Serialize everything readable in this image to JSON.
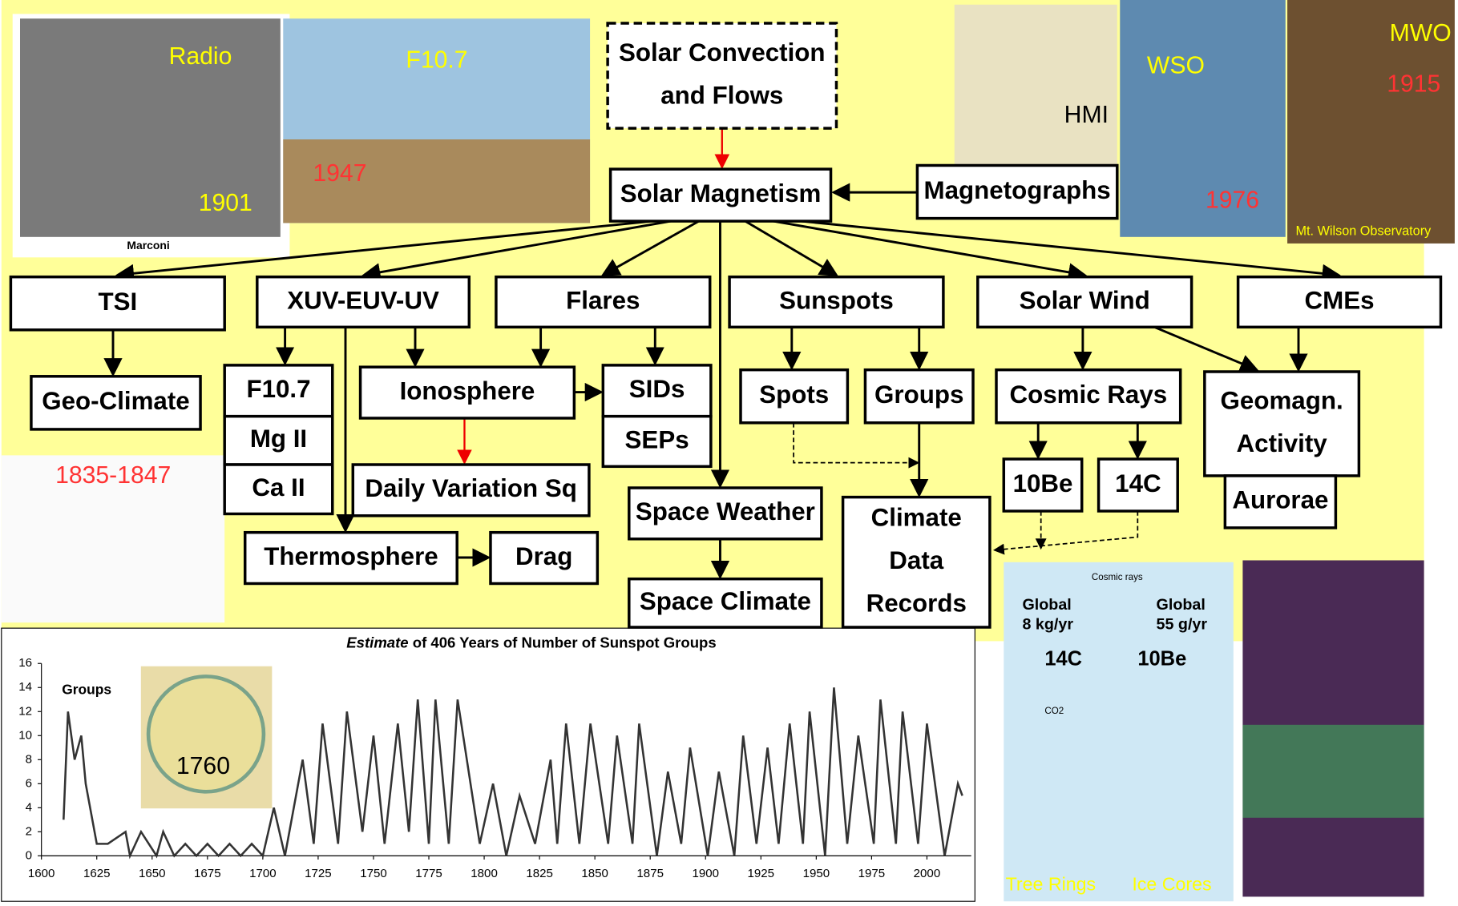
{
  "nodes": [
    {
      "lines": [
        "Solar Convection",
        "and Flows"
      ]
    },
    {
      "lines": [
        "Solar Magnetism"
      ]
    },
    {
      "lines": [
        "Magnetographs"
      ]
    },
    {
      "lines": [
        "TSI"
      ]
    },
    {
      "lines": [
        "XUV-EUV-UV"
      ]
    },
    {
      "lines": [
        "Flares"
      ]
    },
    {
      "lines": [
        "Sunspots"
      ]
    },
    {
      "lines": [
        "Solar Wind"
      ]
    },
    {
      "lines": [
        "CMEs"
      ]
    },
    {
      "lines": [
        "Geo-Climate"
      ]
    },
    {
      "lines": [
        "F10.7"
      ]
    },
    {
      "lines": [
        "Mg II"
      ]
    },
    {
      "lines": [
        "Ca II"
      ]
    },
    {
      "lines": [
        "Ionosphere"
      ]
    },
    {
      "lines": [
        "SIDs"
      ]
    },
    {
      "lines": [
        "SEPs"
      ]
    },
    {
      "lines": [
        "Spots"
      ]
    },
    {
      "lines": [
        "Groups"
      ]
    },
    {
      "lines": [
        "Cosmic Rays"
      ]
    },
    {
      "lines": [
        "Geomagn.",
        "Activity"
      ]
    },
    {
      "lines": [
        "Aurorae"
      ]
    },
    {
      "lines": [
        "Daily Variation Sq"
      ]
    },
    {
      "lines": [
        "Thermosphere"
      ]
    },
    {
      "lines": [
        "Drag"
      ]
    },
    {
      "lines": [
        "Space Weather"
      ]
    },
    {
      "lines": [
        "Space Climate"
      ]
    },
    {
      "lines": [
        "Climate",
        "Data",
        "Records"
      ]
    },
    {
      "lines": [
        "10Be"
      ]
    },
    {
      "lines": [
        "14C"
      ]
    }
  ],
  "photos": {
    "radio": "Radio",
    "radio_year": "1901",
    "marconi": "Marconi",
    "f107": "F10.7",
    "f107_year": "1947",
    "hmi": "HMI",
    "wso": "WSO",
    "wso_year": "1976",
    "mwo": "MWO",
    "mwo_year": "1915",
    "mwo_name": "Mt. Wilson Observatory",
    "magnetometer_years": "1835-1847",
    "cosmic_rays": "Cosmic rays",
    "global_c": "Global",
    "flux_c": "8 kg/yr",
    "global_be": "Global",
    "flux_be": "55 g/yr",
    "c14": "14C",
    "be10": "10Be",
    "co2": "CO2",
    "tree_rings": "Tree Rings",
    "ice_cores": "Ice Cores"
  },
  "chart_data": {
    "type": "line",
    "title_emphasis": "Estimate",
    "title": " of 406 Years of Number of Sunspot Groups",
    "ylabel": "Groups",
    "inset_label": "1760",
    "color": "#333333",
    "x": [
      1610,
      1612,
      1615,
      1618,
      1620,
      1625,
      1630,
      1638,
      1640,
      1645,
      1652,
      1655,
      1660,
      1665,
      1670,
      1675,
      1680,
      1685,
      1690,
      1695,
      1700,
      1705,
      1710,
      1718,
      1723,
      1727,
      1734,
      1738,
      1745,
      1750,
      1755,
      1761,
      1766,
      1770,
      1775,
      1778,
      1784,
      1788,
      1798,
      1804,
      1810,
      1816,
      1823,
      1830,
      1833,
      1837,
      1843,
      1848,
      1856,
      1860,
      1867,
      1870,
      1878,
      1883,
      1889,
      1893,
      1901,
      1906,
      1913,
      1917,
      1923,
      1928,
      1933,
      1938,
      1944,
      1947,
      1954,
      1958,
      1964,
      1969,
      1976,
      1979,
      1986,
      1989,
      1996,
      2000,
      2008,
      2014,
      2016
    ],
    "values": [
      3,
      12,
      8,
      10,
      6,
      1,
      1,
      2,
      0,
      2,
      0,
      2,
      0,
      1,
      0,
      1,
      0,
      1,
      0,
      1,
      0,
      4,
      0,
      8,
      1,
      11,
      1,
      12,
      2,
      10,
      1,
      11,
      2,
      13,
      1,
      13,
      1,
      13,
      1,
      6,
      0,
      5,
      1,
      8,
      1,
      11,
      1,
      11,
      1,
      10,
      1,
      11,
      0,
      7,
      1,
      9,
      0,
      7,
      0,
      10,
      1,
      9,
      1,
      11,
      1,
      12,
      0,
      14,
      1,
      10,
      1,
      13,
      1,
      12,
      1,
      11,
      0,
      6,
      5
    ],
    "xlim": [
      1600,
      2020
    ],
    "ylim": [
      0,
      16
    ],
    "xticks": [
      1600,
      1625,
      1650,
      1675,
      1700,
      1725,
      1750,
      1775,
      1800,
      1825,
      1850,
      1875,
      1900,
      1925,
      1950,
      1975,
      2000
    ],
    "yticks": [
      0,
      2,
      4,
      6,
      8,
      10,
      12,
      14,
      16
    ]
  }
}
